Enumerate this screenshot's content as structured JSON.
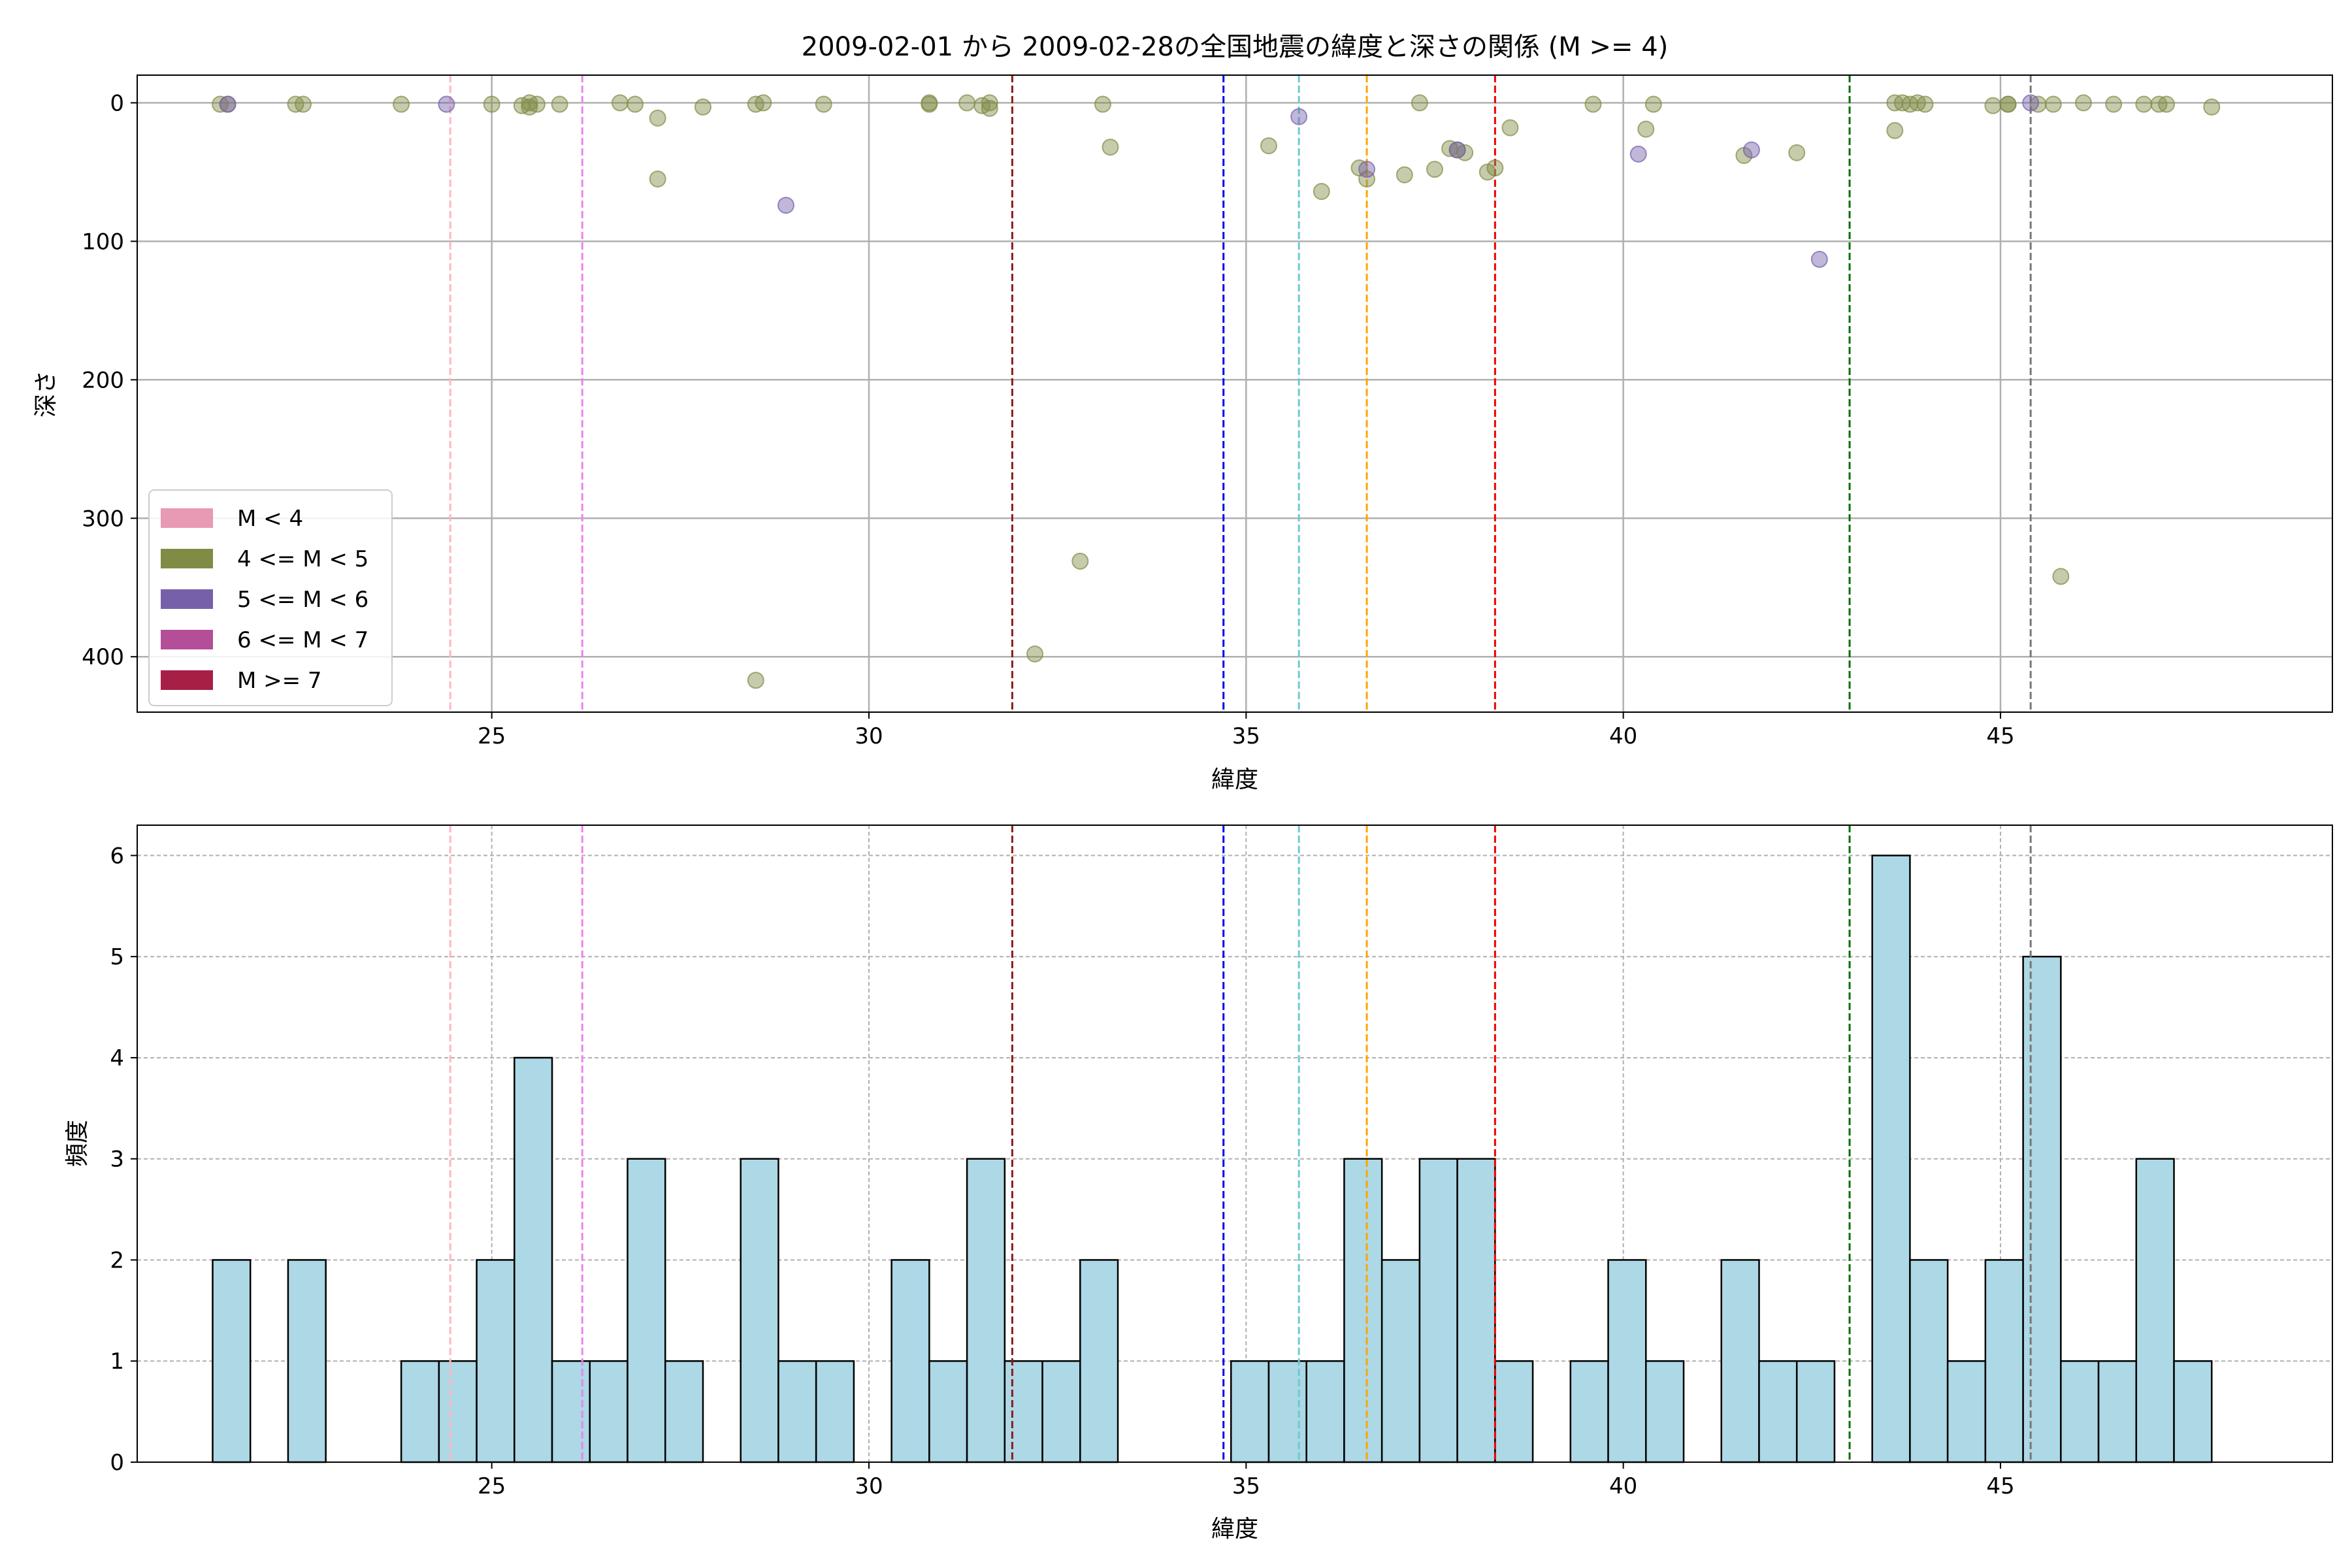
{
  "chart_data": [
    {
      "type": "scatter",
      "title": "2009-02-01 から 2009-02-28の全国地震の緯度と深さの関係 (M >= 4)",
      "xlabel": "緯度",
      "ylabel": "深さ",
      "xlim": [
        20.3,
        49.4
      ],
      "ylim": [
        440,
        -20
      ],
      "y_inverted": true,
      "xticks": [
        25,
        30,
        35,
        40,
        45
      ],
      "yticks": [
        0,
        100,
        200,
        300,
        400
      ],
      "grid": true,
      "legend_position": "lower-left",
      "legend": [
        {
          "label": "M < 4",
          "color": "#e899b4"
        },
        {
          "label": "4 <= M < 5",
          "color": "#808c46"
        },
        {
          "label": "5 <= M < 6",
          "color": "#7660aa"
        },
        {
          "label": "6 <= M < 7",
          "color": "#b44e98"
        },
        {
          "label": "M >= 7",
          "color": "#a81f45"
        }
      ],
      "series": [
        {
          "class": "4 <= M < 5",
          "color": "#808c46",
          "points": [
            [
              21.4,
              1
            ],
            [
              21.5,
              1
            ],
            [
              22.4,
              1
            ],
            [
              22.5,
              1
            ],
            [
              23.8,
              1
            ],
            [
              25.0,
              1
            ],
            [
              25.4,
              2
            ],
            [
              25.5,
              0
            ],
            [
              25.5,
              3
            ],
            [
              25.6,
              1
            ],
            [
              25.9,
              1
            ],
            [
              26.7,
              0
            ],
            [
              26.9,
              1
            ],
            [
              27.2,
              11
            ],
            [
              27.2,
              55
            ],
            [
              27.8,
              3
            ],
            [
              28.5,
              1
            ],
            [
              28.6,
              0
            ],
            [
              28.5,
              417
            ],
            [
              29.4,
              1
            ],
            [
              30.8,
              0
            ],
            [
              30.8,
              1
            ],
            [
              31.3,
              0
            ],
            [
              31.5,
              2
            ],
            [
              31.6,
              0
            ],
            [
              31.6,
              4
            ],
            [
              32.2,
              398
            ],
            [
              32.8,
              331
            ],
            [
              33.1,
              1
            ],
            [
              33.2,
              32
            ],
            [
              35.3,
              31
            ],
            [
              36.0,
              64
            ],
            [
              36.5,
              47
            ],
            [
              36.6,
              55
            ],
            [
              37.1,
              52
            ],
            [
              37.3,
              0
            ],
            [
              37.5,
              48
            ],
            [
              37.7,
              33
            ],
            [
              37.8,
              34
            ],
            [
              37.9,
              36
            ],
            [
              38.2,
              50
            ],
            [
              38.3,
              47
            ],
            [
              38.5,
              18
            ],
            [
              39.6,
              1
            ],
            [
              40.3,
              19
            ],
            [
              40.4,
              1
            ],
            [
              41.6,
              38
            ],
            [
              42.3,
              36
            ],
            [
              43.6,
              0
            ],
            [
              43.6,
              20
            ],
            [
              43.7,
              0
            ],
            [
              43.8,
              1
            ],
            [
              43.9,
              0
            ],
            [
              44.0,
              1
            ],
            [
              44.9,
              2
            ],
            [
              45.1,
              1
            ],
            [
              45.5,
              1
            ],
            [
              45.7,
              1
            ],
            [
              45.8,
              342
            ],
            [
              46.1,
              0
            ],
            [
              46.5,
              1
            ],
            [
              46.9,
              1
            ],
            [
              47.1,
              1
            ],
            [
              47.2,
              1
            ],
            [
              47.8,
              3
            ],
            [
              45.1,
              1
            ]
          ]
        },
        {
          "class": "5 <= M < 6",
          "color": "#7660aa",
          "points": [
            [
              21.5,
              1
            ],
            [
              24.4,
              1
            ],
            [
              28.9,
              74
            ],
            [
              35.7,
              10
            ],
            [
              36.6,
              48
            ],
            [
              37.8,
              34
            ],
            [
              40.2,
              37
            ],
            [
              41.7,
              34
            ],
            [
              42.6,
              113
            ],
            [
              45.4,
              0
            ]
          ]
        }
      ],
      "reference_lines_x": [
        {
          "x": 24.45,
          "color": "#ffb6c1"
        },
        {
          "x": 26.2,
          "color": "#ee82ee"
        },
        {
          "x": 31.9,
          "color": "#8b1a1a"
        },
        {
          "x": 34.7,
          "color": "#0000ee"
        },
        {
          "x": 35.7,
          "color": "#70c8d0"
        },
        {
          "x": 36.6,
          "color": "#ffa500"
        },
        {
          "x": 38.3,
          "color": "#ee0000"
        },
        {
          "x": 43.0,
          "color": "#007000"
        },
        {
          "x": 45.4,
          "color": "#777777"
        }
      ]
    },
    {
      "type": "bar",
      "title": "",
      "xlabel": "緯度",
      "ylabel": "頻度",
      "xlim": [
        20.3,
        49.4
      ],
      "ylim": [
        0,
        6.3
      ],
      "xticks": [
        25,
        30,
        35,
        40,
        45
      ],
      "yticks": [
        0,
        1,
        2,
        3,
        4,
        5,
        6
      ],
      "grid": true,
      "bar_color": "#add8e6",
      "bin_start": 21.3,
      "bin_width": 0.5,
      "counts": [
        2,
        0,
        2,
        0,
        0,
        1,
        1,
        2,
        4,
        1,
        1,
        3,
        1,
        0,
        3,
        1,
        1,
        0,
        2,
        1,
        3,
        1,
        1,
        2,
        0,
        0,
        0,
        1,
        1,
        1,
        3,
        2,
        3,
        3,
        1,
        0,
        1,
        2,
        1,
        0,
        2,
        1,
        1,
        0,
        6,
        2,
        1,
        2,
        5,
        1,
        1,
        3,
        1
      ],
      "reference_lines_x": [
        {
          "x": 24.45,
          "color": "#ffb6c1"
        },
        {
          "x": 26.2,
          "color": "#ee82ee"
        },
        {
          "x": 31.9,
          "color": "#8b1a1a"
        },
        {
          "x": 34.7,
          "color": "#0000ee"
        },
        {
          "x": 35.7,
          "color": "#70c8d0"
        },
        {
          "x": 36.6,
          "color": "#ffa500"
        },
        {
          "x": 38.3,
          "color": "#ee0000"
        },
        {
          "x": 43.0,
          "color": "#007000"
        },
        {
          "x": 45.4,
          "color": "#777777"
        }
      ]
    }
  ]
}
